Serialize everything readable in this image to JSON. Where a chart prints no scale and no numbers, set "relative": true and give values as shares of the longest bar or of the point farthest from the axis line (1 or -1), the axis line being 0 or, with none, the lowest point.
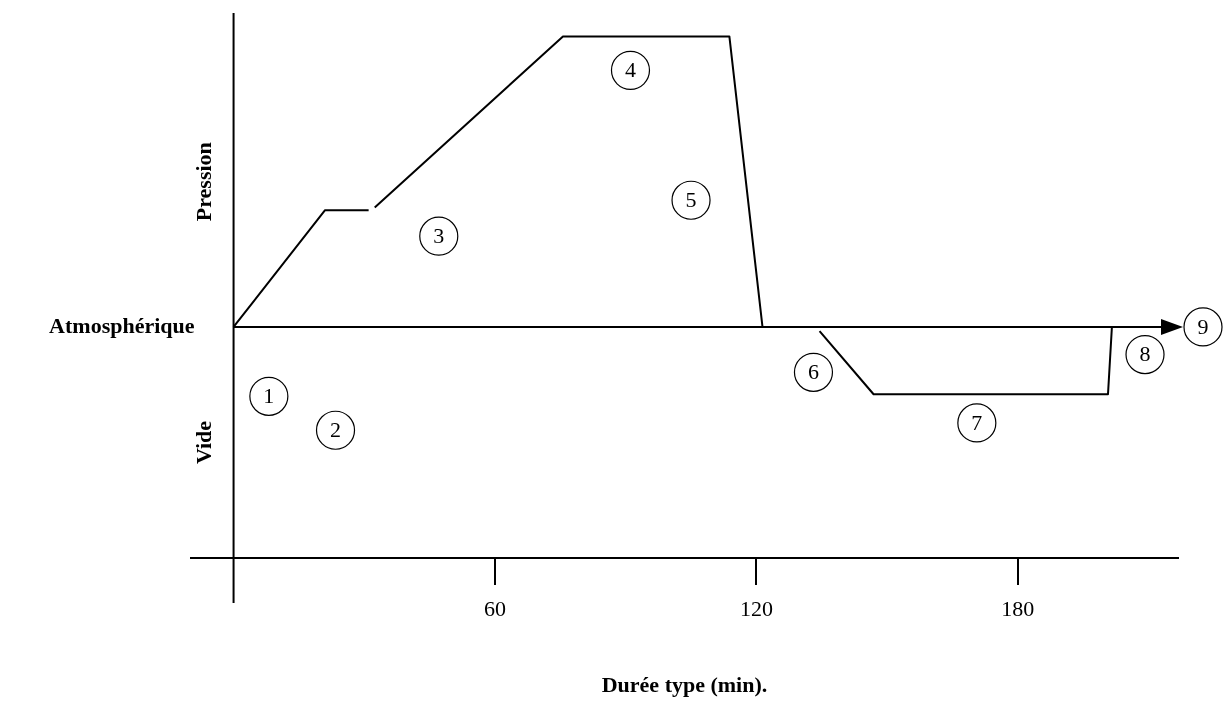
{
  "chart_data": {
    "type": "line",
    "relative": true,
    "xlabel": "Durée type (min).",
    "ylabel": "Pression",
    "y2label": "Vide",
    "xlim": [
      -10,
      217
    ],
    "xticks": [
      60,
      120,
      180
    ],
    "marker": "none",
    "line_style": "solid",
    "legend": false,
    "grid": false,
    "tick_labels": "x",
    "series": [
      {
        "color": "#000000",
        "x": [
          0,
          21,
          31,
          32,
          32.4,
          75.6,
          113.8,
          121.4,
          128,
          134.5,
          146.9,
          200.7,
          201.6
        ],
        "values": [
          0.443,
          0.667,
          0.667,
          null,
          0.672,
          1,
          1,
          0.443,
          null,
          0.435,
          0.314,
          0.314,
          0.443
        ]
      }
    ],
    "ref_lines": [
      {
        "axis": "y",
        "value": 0.443,
        "label": "Atmosphérique",
        "color": "#000000"
      }
    ],
    "annotations": [
      {
        "text": "1",
        "x": 8.1,
        "y": 0.31
      },
      {
        "text": "2",
        "x": 23.4,
        "y": 0.245
      },
      {
        "text": "3",
        "x": 47.1,
        "y": 0.617
      },
      {
        "text": "4",
        "x": 91.1,
        "y": 0.935
      },
      {
        "text": "5",
        "x": 105,
        "y": 0.686
      },
      {
        "text": "6",
        "x": 133.1,
        "y": 0.356
      },
      {
        "text": "7",
        "x": 170.6,
        "y": 0.259
      },
      {
        "text": "8",
        "x": 209.2,
        "y": 0.39
      },
      "9"
    ]
  }
}
